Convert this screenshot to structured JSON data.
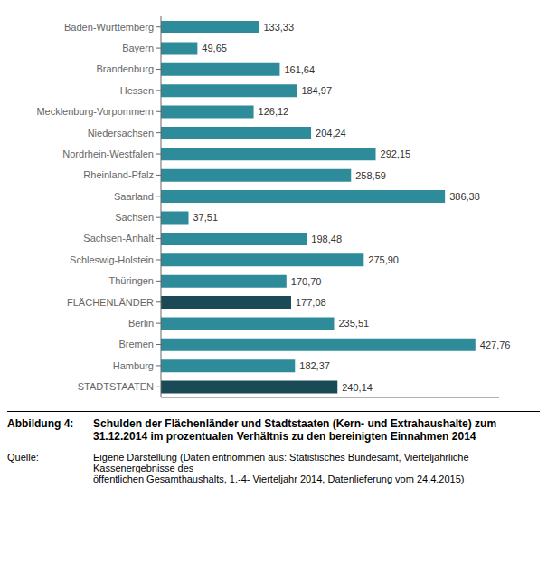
{
  "chart_data": {
    "type": "bar",
    "orientation": "horizontal",
    "title": "Abbildung 4:",
    "subtitle": "Schulden der Flächenländer und Stadtstaaten (Kern- und Extrahaushalte) zum\n31.12.2014 im prozentualen Verhältnis zu den bereinigten Einnahmen 2014",
    "annotations": [
      "Quelle:",
      "Eigene Darstellung (Daten entnommen aus: Statistisches Bundesamt, Vierteljährliche Kassenergebnisse des\nöffentlichen Gesamthaushalts, 1.-4- Vierteljahr 2014, Datenlieferung vom 24.4.2015)"
    ],
    "categories": [
      "Baden-Württemberg",
      "Bayern",
      "Brandenburg",
      "Hessen",
      "Mecklenburg-Vorpommern",
      "Niedersachsen",
      "Nordrhein-Westfalen",
      "Rheinland-Pfalz",
      "Saarland",
      "Sachsen",
      "Sachsen-Anhalt",
      "Schleswig-Holstein",
      "Thüringen",
      "FLÄCHENLÄNDER",
      "Berlin",
      "Bremen",
      "Hamburg",
      "STADTSTAATEN"
    ],
    "values": [
      133.33,
      49.65,
      161.64,
      184.97,
      126.12,
      204.24,
      292.15,
      258.59,
      386.38,
      37.51,
      198.48,
      275.9,
      170.7,
      177.08,
      235.51,
      427.76,
      182.37,
      240.14
    ],
    "value_labels": [
      "133,33",
      "49,65",
      "161,64",
      "184,97",
      "126,12",
      "204,24",
      "292,15",
      "258,59",
      "386,38",
      "37,51",
      "198,48",
      "275,90",
      "170,70",
      "177,08",
      "235,51",
      "427,76",
      "182,37",
      "240,14"
    ],
    "colors": [
      "#2E8B9A",
      "#2E8B9A",
      "#2E8B9A",
      "#2E8B9A",
      "#2E8B9A",
      "#2E8B9A",
      "#2E8B9A",
      "#2E8B9A",
      "#2E8B9A",
      "#2E8B9A",
      "#2E8B9A",
      "#2E8B9A",
      "#2E8B9A",
      "#1A4A55",
      "#2E8B9A",
      "#2E8B9A",
      "#2E8B9A",
      "#1A4A55"
    ],
    "xlim": [
      0,
      460
    ],
    "tick_labels": "y",
    "data_labels": true,
    "grid": false
  }
}
